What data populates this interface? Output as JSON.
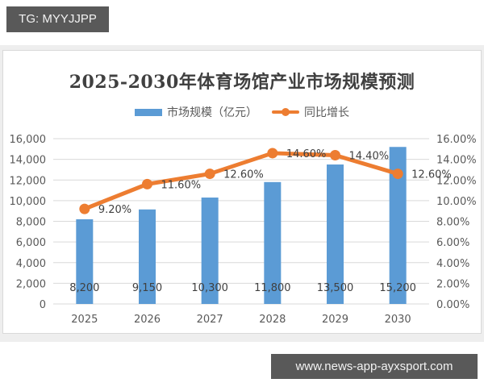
{
  "overlay": {
    "top_tag": "TG: MYYJJPP",
    "bottom_tag": "www.news-app-ayxsport.com"
  },
  "legend": {
    "bar_label": "市场规模（亿元）",
    "line_label": "同比增长"
  },
  "colors": {
    "bar": "#5b9bd5",
    "line": "#ed7d31",
    "grid": "#d9d9d9",
    "text": "#595959"
  },
  "chart_data": {
    "type": "bar+line",
    "title": "2025-2030年体育场馆产业市场规模预测",
    "categories": [
      "2025",
      "2026",
      "2027",
      "2028",
      "2029",
      "2030"
    ],
    "series": [
      {
        "name": "市场规模（亿元）",
        "type": "bar",
        "axis": "left",
        "values": [
          8200,
          9150,
          10300,
          11800,
          13500,
          15200
        ],
        "labels": [
          "8,200",
          "9,150",
          "10,300",
          "11,800",
          "13,500",
          "15,200"
        ]
      },
      {
        "name": "同比增长",
        "type": "line",
        "axis": "right",
        "values": [
          9.2,
          11.6,
          12.6,
          14.6,
          14.4,
          12.6
        ],
        "labels": [
          "9.20%",
          "11.60%",
          "12.60%",
          "14.60%",
          "14.40%",
          "12.60%"
        ]
      }
    ],
    "xlabel": "",
    "ylabel_left": "",
    "ylabel_right": "",
    "ylim_left": [
      0,
      16000
    ],
    "ylim_right": [
      0,
      16
    ],
    "left_ticks": [
      "0",
      "2,000",
      "4,000",
      "6,000",
      "8,000",
      "10,000",
      "12,000",
      "14,000",
      "16,000"
    ],
    "right_ticks": [
      "0.00%",
      "2.00%",
      "4.00%",
      "6.00%",
      "8.00%",
      "10.00%",
      "12.00%",
      "14.00%",
      "16.00%"
    ],
    "grid": true,
    "legend_position": "top"
  }
}
